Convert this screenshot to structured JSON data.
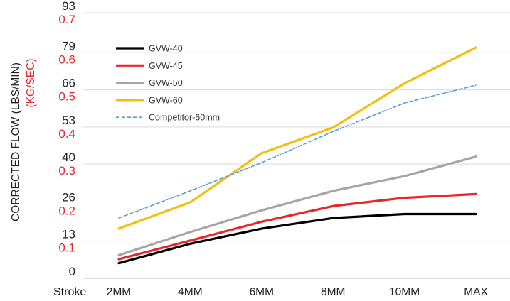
{
  "chart_data": {
    "type": "line",
    "xlabel": "Stroke",
    "ylabel": "CORRECTED FLOW (LBS/MIN)",
    "ylabel_secondary": "(KG/SEC)",
    "categories": [
      "2MM",
      "4MM",
      "6MM",
      "8MM",
      "10MM",
      "MAX"
    ],
    "ylim": [
      0,
      93
    ],
    "yticks": [
      0,
      13,
      26,
      40,
      53,
      66,
      79,
      93
    ],
    "yticks_secondary": [
      "0.1",
      "0.2",
      "0.3",
      "0.4",
      "0.5",
      "0.6",
      "0.7"
    ],
    "yticks_secondary_values": [
      13,
      26,
      40,
      53,
      66,
      79,
      93
    ],
    "grid": true,
    "legend_position": "top-left",
    "series": [
      {
        "name": "GVW-40",
        "color": "#000000",
        "style": "solid",
        "values": [
          5.3,
          12.1,
          17.4,
          21.1,
          22.5,
          22.5
        ]
      },
      {
        "name": "GVW-45",
        "color": "#e8262b",
        "style": "solid",
        "values": [
          6.7,
          13.2,
          19.8,
          25.3,
          28.2,
          29.5
        ]
      },
      {
        "name": "GVW-50",
        "color": "#a6a6a6",
        "style": "solid",
        "values": [
          8.1,
          16.2,
          23.8,
          30.6,
          35.8,
          42.6
        ]
      },
      {
        "name": "GVW-60",
        "color": "#f2c00c",
        "style": "solid",
        "values": [
          17.4,
          26.6,
          43.8,
          52.8,
          68.3,
          80.8
        ]
      },
      {
        "name": "Competitor-60mm",
        "color": "#5b9bd5",
        "style": "dashed",
        "values": [
          21.1,
          30.6,
          40.5,
          51.4,
          61.4,
          67.6
        ]
      }
    ]
  }
}
